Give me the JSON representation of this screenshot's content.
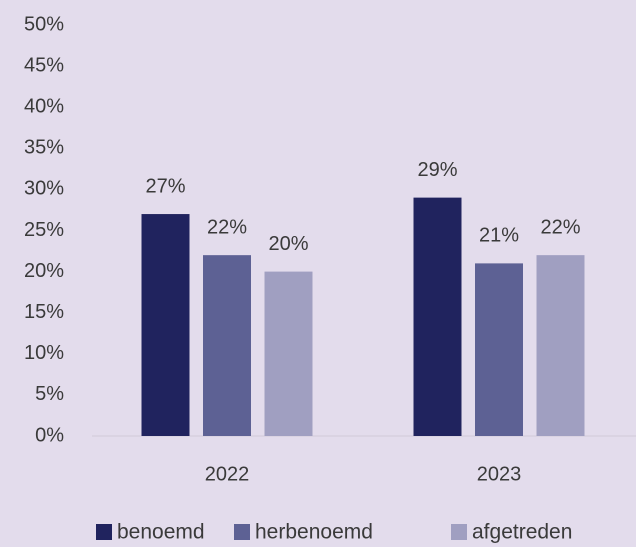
{
  "chart_data": {
    "type": "bar",
    "categories": [
      "2022",
      "2023"
    ],
    "series": [
      {
        "name": "benoemd",
        "color": "#20235e",
        "values": [
          27,
          29
        ],
        "value_labels": [
          "27%",
          "29%"
        ]
      },
      {
        "name": "herbenoemd",
        "color": "#5d6194",
        "values": [
          22,
          21
        ],
        "value_labels": [
          "22%",
          "21%"
        ]
      },
      {
        "name": "afgetreden",
        "color": "#a09fc1",
        "values": [
          20,
          22
        ],
        "value_labels": [
          "20%",
          "22%"
        ]
      }
    ],
    "ylim": [
      0,
      50
    ],
    "yticks": [
      {
        "value": 0,
        "label": "0%"
      },
      {
        "value": 5,
        "label": "5%"
      },
      {
        "value": 10,
        "label": "10%"
      },
      {
        "value": 15,
        "label": "15%"
      },
      {
        "value": 20,
        "label": "20%"
      },
      {
        "value": 25,
        "label": "25%"
      },
      {
        "value": 30,
        "label": "30%"
      },
      {
        "value": 35,
        "label": "35%"
      },
      {
        "value": 40,
        "label": "40%"
      },
      {
        "value": 45,
        "label": "45%"
      },
      {
        "value": 50,
        "label": "50%"
      }
    ],
    "grid": false,
    "legend": "bottom"
  }
}
